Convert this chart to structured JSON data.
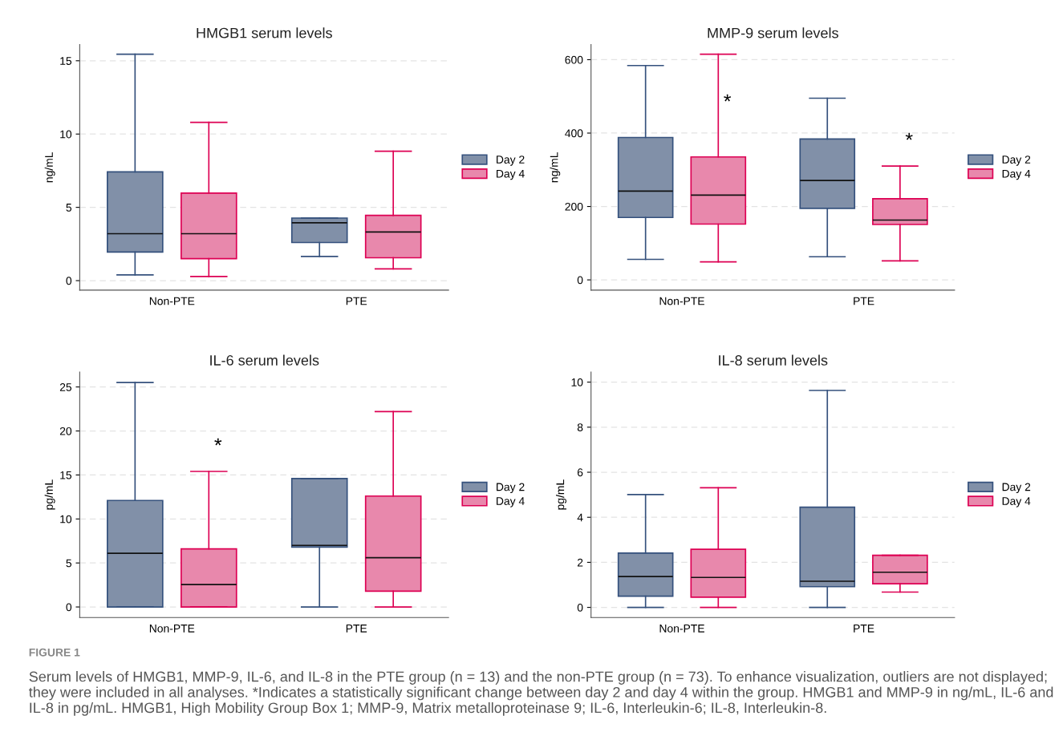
{
  "chart_data": [
    {
      "type": "box",
      "title": "HMGB1 serum levels",
      "ylabel": "ng/mL",
      "categories": [
        "Non-PTE",
        "PTE"
      ],
      "ylim": [
        -0.65,
        16.1
      ],
      "yticks": [
        0,
        5,
        10,
        15
      ],
      "grid": "y",
      "legend": "right",
      "series": [
        {
          "name": "Day 2",
          "color": "#8190a8",
          "boxes": [
            {
              "low": 0.39,
              "q1": 1.95,
              "median": 3.2,
              "q3": 7.42,
              "high": 15.45
            },
            {
              "low": 1.65,
              "q1": 2.6,
              "median": 3.95,
              "q3": 4.27,
              "high": 4.27
            }
          ]
        },
        {
          "name": "Day 4",
          "color": "#e888ac",
          "boxes": [
            {
              "low": 0.28,
              "q1": 1.5,
              "median": 3.2,
              "q3": 5.97,
              "high": 10.8
            },
            {
              "low": 0.8,
              "q1": 1.56,
              "median": 3.32,
              "q3": 4.45,
              "high": 8.83
            }
          ]
        }
      ]
    },
    {
      "type": "box",
      "title": "MMP-9 serum levels",
      "ylabel": "ng/mL",
      "categories": [
        "Non-PTE",
        "PTE"
      ],
      "ylim": [
        -28,
        641
      ],
      "yticks": [
        0,
        200,
        400,
        600
      ],
      "grid": "y",
      "legend": "right",
      "annotations": [
        "*",
        "*"
      ],
      "series": [
        {
          "name": "Day 2",
          "color": "#8190a8",
          "boxes": [
            {
              "low": 56,
              "q1": 170,
              "median": 242,
              "q3": 388,
              "high": 584
            },
            {
              "low": 63,
              "q1": 195,
              "median": 271,
              "q3": 384,
              "high": 495
            }
          ]
        },
        {
          "name": "Day 4",
          "color": "#e888ac",
          "boxes": [
            {
              "low": 49,
              "q1": 152,
              "median": 231,
              "q3": 335,
              "high": 615
            },
            {
              "low": 52,
              "q1": 151,
              "median": 163,
              "q3": 221,
              "high": 310
            }
          ]
        }
      ]
    },
    {
      "type": "box",
      "title": "IL-6 serum levels",
      "ylabel": "pg/mL",
      "categories": [
        "Non-PTE",
        "PTE"
      ],
      "ylim": [
        -1.2,
        26.7
      ],
      "yticks": [
        0,
        5,
        10,
        15,
        20,
        25
      ],
      "grid": "y",
      "legend": "right",
      "annotations": [
        "*"
      ],
      "series": [
        {
          "name": "Day 2",
          "color": "#8190a8",
          "boxes": [
            {
              "low": 0,
              "q1": 0,
              "median": 6.1,
              "q3": 12.1,
              "high": 25.5
            },
            {
              "low": 0,
              "q1": 6.8,
              "median": 7.0,
              "q3": 14.6,
              "high": 14.6
            }
          ]
        },
        {
          "name": "Day 4",
          "color": "#e888ac",
          "boxes": [
            {
              "low": 0,
              "q1": 0,
              "median": 2.55,
              "q3": 6.6,
              "high": 15.4
            },
            {
              "low": 0,
              "q1": 1.8,
              "median": 5.6,
              "q3": 12.6,
              "high": 22.2
            }
          ]
        }
      ]
    },
    {
      "type": "box",
      "title": "IL-8 serum levels",
      "ylabel": "pg/mL",
      "categories": [
        "Non-PTE",
        "PTE"
      ],
      "ylim": [
        -0.45,
        10.45
      ],
      "yticks": [
        0,
        2,
        4,
        6,
        8,
        10
      ],
      "grid": "y",
      "legend": "right",
      "annotations": [
        "FIGURE 1",
        "Serum levels of HMGB1, MMP-9, IL-6, and IL-8 in the PTE group (n = 13) and the non-PTE group (n = 73). To enhance visualization, outliers are not displayed; they were included in all analyses. *Indicates a statistically significant change between day 2 and day 4 within the group. HMGB1 and MMP-9 in ng/mL, IL-6 and IL-8 in pg/mL. HMGB1, High Mobility Group Box 1; MMP-9, Matrix metalloproteinase 9; IL-6, Interleukin-6; IL-8, Interleukin-8."
      ],
      "series": [
        {
          "name": "Day 2",
          "color": "#8190a8",
          "boxes": [
            {
              "low": 0,
              "q1": 0.5,
              "median": 1.37,
              "q3": 2.41,
              "high": 5.01
            },
            {
              "low": 0,
              "q1": 0.92,
              "median": 1.16,
              "q3": 4.45,
              "high": 9.63
            }
          ]
        },
        {
          "name": "Day 4",
          "color": "#e888ac",
          "boxes": [
            {
              "low": 0,
              "q1": 0.45,
              "median": 1.33,
              "q3": 2.58,
              "high": 5.31
            },
            {
              "low": 0.68,
              "q1": 1.05,
              "median": 1.56,
              "q3": 2.31,
              "high": 2.31
            }
          ]
        }
      ]
    }
  ]
}
